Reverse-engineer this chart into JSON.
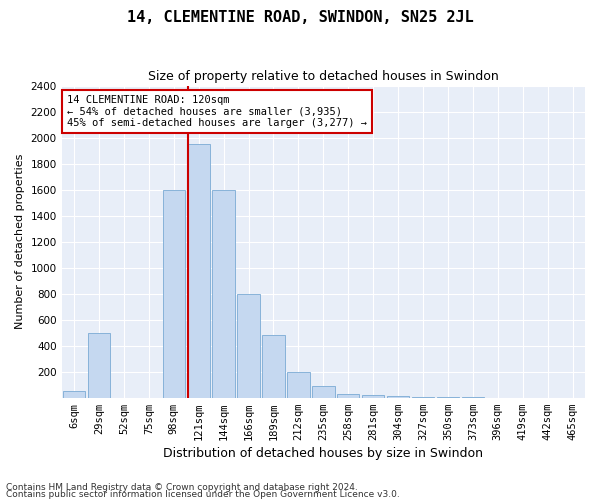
{
  "title": "14, CLEMENTINE ROAD, SWINDON, SN25 2JL",
  "subtitle": "Size of property relative to detached houses in Swindon",
  "xlabel": "Distribution of detached houses by size in Swindon",
  "ylabel": "Number of detached properties",
  "footer1": "Contains HM Land Registry data © Crown copyright and database right 2024.",
  "footer2": "Contains public sector information licensed under the Open Government Licence v3.0.",
  "annotation_line1": "14 CLEMENTINE ROAD: 120sqm",
  "annotation_line2": "← 54% of detached houses are smaller (3,935)",
  "annotation_line3": "45% of semi-detached houses are larger (3,277) →",
  "bar_color": "#c5d8f0",
  "bar_edge_color": "#7aaad4",
  "highlight_color": "#cc0000",
  "background_color": "#e8eef8",
  "figure_color": "#ffffff",
  "grid_color": "#ffffff",
  "categories": [
    "6sqm",
    "29sqm",
    "52sqm",
    "75sqm",
    "98sqm",
    "121sqm",
    "144sqm",
    "166sqm",
    "189sqm",
    "212sqm",
    "235sqm",
    "258sqm",
    "281sqm",
    "304sqm",
    "327sqm",
    "350sqm",
    "373sqm",
    "396sqm",
    "419sqm",
    "442sqm",
    "465sqm"
  ],
  "values": [
    50,
    500,
    0,
    0,
    1600,
    1950,
    1600,
    800,
    480,
    200,
    90,
    30,
    20,
    10,
    5,
    3,
    2,
    1,
    1,
    0,
    0
  ],
  "highlight_index": 5,
  "ylim": [
    0,
    2400
  ],
  "yticks": [
    0,
    200,
    400,
    600,
    800,
    1000,
    1200,
    1400,
    1600,
    1800,
    2000,
    2200,
    2400
  ],
  "title_fontsize": 11,
  "subtitle_fontsize": 9,
  "ylabel_fontsize": 8,
  "xlabel_fontsize": 9,
  "tick_fontsize": 7.5,
  "annotation_fontsize": 7.5,
  "footer_fontsize": 6.5
}
